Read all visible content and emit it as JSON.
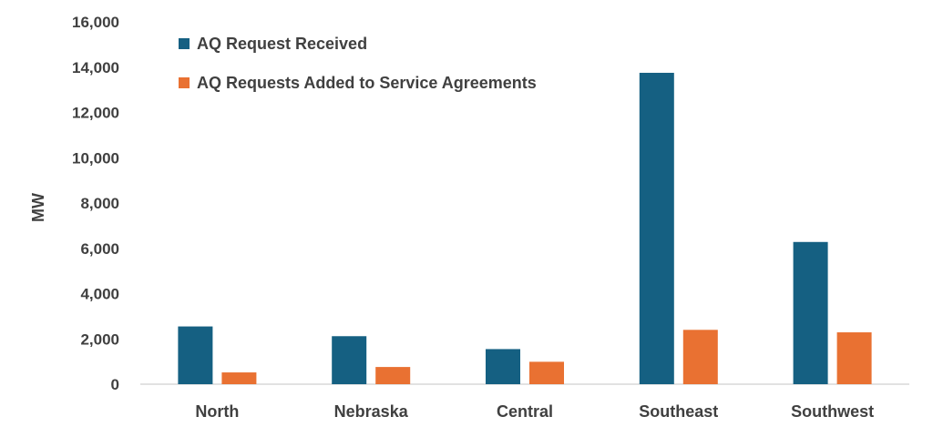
{
  "chart_data": {
    "type": "bar",
    "title": "",
    "xlabel": "",
    "ylabel": "MW",
    "ylim": [
      0,
      16000
    ],
    "yticks": [
      0,
      2000,
      4000,
      6000,
      8000,
      10000,
      12000,
      14000,
      16000
    ],
    "ytick_labels": [
      "0",
      "2,000",
      "4,000",
      "6,000",
      "8,000",
      "10,000",
      "12,000",
      "14,000",
      "16,000"
    ],
    "categories": [
      "North",
      "Nebraska",
      "Central",
      "Southeast",
      "Southwest"
    ],
    "series": [
      {
        "name": "AQ Request Received",
        "color": "#156082",
        "values": [
          2550,
          2120,
          1550,
          13750,
          6280
        ]
      },
      {
        "name": "AQ Requests Added to Service Agreements",
        "color": "#E97132",
        "values": [
          520,
          760,
          990,
          2400,
          2290
        ]
      }
    ],
    "grid": false,
    "legend": "top-left"
  }
}
